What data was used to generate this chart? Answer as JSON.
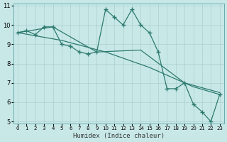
{
  "xlabel": "Humidex (Indice chaleur)",
  "bg_color": "#c8e8e8",
  "line_color": "#2d7a6e",
  "grid_color": "#aacfcf",
  "xlim": [
    -0.5,
    23.5
  ],
  "ylim": [
    5,
    11
  ],
  "yticks": [
    5,
    6,
    7,
    8,
    9,
    10,
    11
  ],
  "xticks": [
    0,
    1,
    2,
    3,
    4,
    5,
    6,
    7,
    8,
    9,
    10,
    11,
    12,
    13,
    14,
    15,
    16,
    17,
    18,
    19,
    20,
    21,
    22,
    23
  ],
  "series": [
    [
      0,
      9.6
    ],
    [
      1,
      9.7
    ],
    [
      2,
      9.5
    ],
    [
      3,
      9.9
    ],
    [
      4,
      9.9
    ],
    [
      5,
      9.0
    ],
    [
      6,
      8.9
    ],
    [
      7,
      8.6
    ],
    [
      8,
      8.5
    ],
    [
      9,
      8.6
    ],
    [
      10,
      10.8
    ],
    [
      11,
      10.4
    ],
    [
      12,
      10.0
    ],
    [
      13,
      10.8
    ],
    [
      14,
      10.0
    ],
    [
      15,
      9.6
    ],
    [
      16,
      8.6
    ],
    [
      17,
      6.7
    ],
    [
      18,
      6.7
    ],
    [
      19,
      7.0
    ],
    [
      20,
      5.9
    ],
    [
      21,
      5.5
    ],
    [
      22,
      5.0
    ],
    [
      23,
      6.4
    ]
  ],
  "line2": [
    [
      0,
      9.6
    ],
    [
      4,
      9.9
    ],
    [
      9,
      8.6
    ],
    [
      14,
      8.7
    ],
    [
      19,
      7.0
    ],
    [
      23,
      6.5
    ]
  ],
  "line3": [
    [
      0,
      9.6
    ],
    [
      5,
      9.2
    ],
    [
      10,
      8.6
    ],
    [
      15,
      7.8
    ],
    [
      20,
      6.8
    ],
    [
      23,
      6.4
    ]
  ]
}
